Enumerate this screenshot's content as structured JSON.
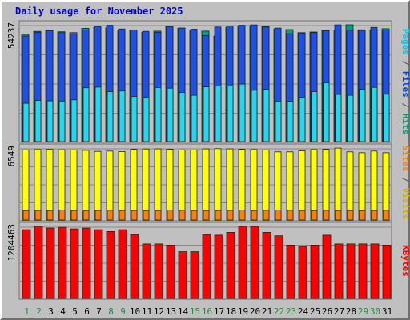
{
  "chart_data": {
    "type": "bar",
    "title": "Daily usage for November 2025",
    "categories": [
      "1",
      "2",
      "3",
      "4",
      "5",
      "6",
      "7",
      "8",
      "9",
      "10",
      "11",
      "12",
      "13",
      "14",
      "15",
      "16",
      "17",
      "18",
      "19",
      "20",
      "21",
      "22",
      "23",
      "24",
      "25",
      "26",
      "27",
      "28",
      "29",
      "30",
      "31"
    ],
    "weekend_days": [
      1,
      2,
      8,
      9,
      15,
      16,
      22,
      23,
      29,
      30
    ],
    "panels": [
      {
        "id": "hits-files-pages",
        "max_label": "54237",
        "ylim": [
          0,
          54237
        ],
        "labels": [
          {
            "text": "Pages",
            "color": "#00c8e8"
          },
          {
            "text": " / ",
            "color": "#555555"
          },
          {
            "text": "Files",
            "color": "#0044dd"
          },
          {
            "text": " / ",
            "color": "#555555"
          },
          {
            "text": "Hits",
            "color": "#00a080"
          }
        ],
        "series": [
          {
            "name": "Hits",
            "color": "#00a080",
            "values": [
              49800,
              51200,
              51500,
              51000,
              50600,
              52600,
              53000,
              52800,
              51700,
              51700,
              50800,
              51300,
              53300,
              52700,
              51400,
              51300,
              49000,
              53000,
              53400,
              53800,
              53500,
              52300,
              52000,
              50600,
              50900,
              51600,
              51600,
              54237,
              51900,
              51600,
              52400
            ]
          },
          {
            "name": "Files",
            "color": "#1c50e6",
            "values": [
              49000,
              50800,
              51500,
              50600,
              50000,
              51800,
              53500,
              54000,
              52300,
              51800,
              51200,
              50800,
              53400,
              52700,
              52200,
              49300,
              53200,
              53700,
              54000,
              54200,
              53200,
              52700,
              50100,
              50400,
              50600,
              51500,
              54200,
              51700,
              51600,
              53000,
              51800
            ]
          },
          {
            "name": "Pages",
            "color": "#20d8f0",
            "values": [
              17800,
              19100,
              18900,
              18800,
              19400,
              25000,
              25300,
              23200,
              23500,
              21000,
              20600,
              25100,
              24800,
              22800,
              21500,
              25400,
              25800,
              25800,
              26700,
              23800,
              24300,
              18600,
              18700,
              20600,
              23200,
              27300,
              21900,
              21500,
              24300,
              25200,
              22000
            ]
          }
        ]
      },
      {
        "id": "visits-sites",
        "max_label": "6549",
        "ylim": [
          0,
          6549
        ],
        "labels": [
          {
            "text": "Sites",
            "color": "#ff8000"
          },
          {
            "text": " / ",
            "color": "#555555"
          },
          {
            "text": "Visits",
            "color": "#d8b000"
          }
        ],
        "series": [
          {
            "name": "Visits",
            "color": "#ffff00",
            "values": [
              6380,
              6400,
              6420,
              6390,
              6360,
              6340,
              6240,
              6270,
              6230,
              6430,
              6460,
              6470,
              6430,
              6380,
              6360,
              6470,
              6490,
              6470,
              6430,
              6400,
              6380,
              6200,
              6200,
              6300,
              6400,
              6430,
              6540,
              6200,
              6120,
              6270,
              6120
            ]
          },
          {
            "name": "Sites",
            "color": "#ff8000",
            "values": [
              840,
              860,
              860,
              900,
              860,
              830,
              860,
              890,
              860,
              860,
              840,
              860,
              900,
              880,
              860,
              860,
              860,
              870,
              900,
              860,
              880,
              900,
              880,
              860,
              840,
              880,
              860,
              860,
              850,
              860,
              880
            ]
          }
        ]
      },
      {
        "id": "kbytes",
        "max_label": "1204463",
        "ylim": [
          0,
          1204463
        ],
        "labels": [
          {
            "text": "KBytes",
            "color": "#ff0000"
          }
        ],
        "series": [
          {
            "name": "KBytes",
            "color": "#ff0000",
            "values": [
              1150000,
              1204463,
              1176000,
              1190000,
              1163000,
              1176000,
              1150000,
              1119000,
              1150000,
              1069000,
              911000,
              911000,
              891000,
              782000,
              782000,
              1069000,
              1058000,
              1105000,
              1204463,
              1204463,
              1105000,
              1048000,
              891000,
              870000,
              891000,
              1058000,
              911000,
              911000,
              911000,
              911000,
              891000
            ]
          }
        ]
      }
    ]
  },
  "colors": {
    "background": "#c0c0c0",
    "plot_background": "#c0c0c0",
    "grid": "#888888",
    "weekday_label": "#2a7a6a",
    "weekend_label": "#2a8a4a"
  }
}
